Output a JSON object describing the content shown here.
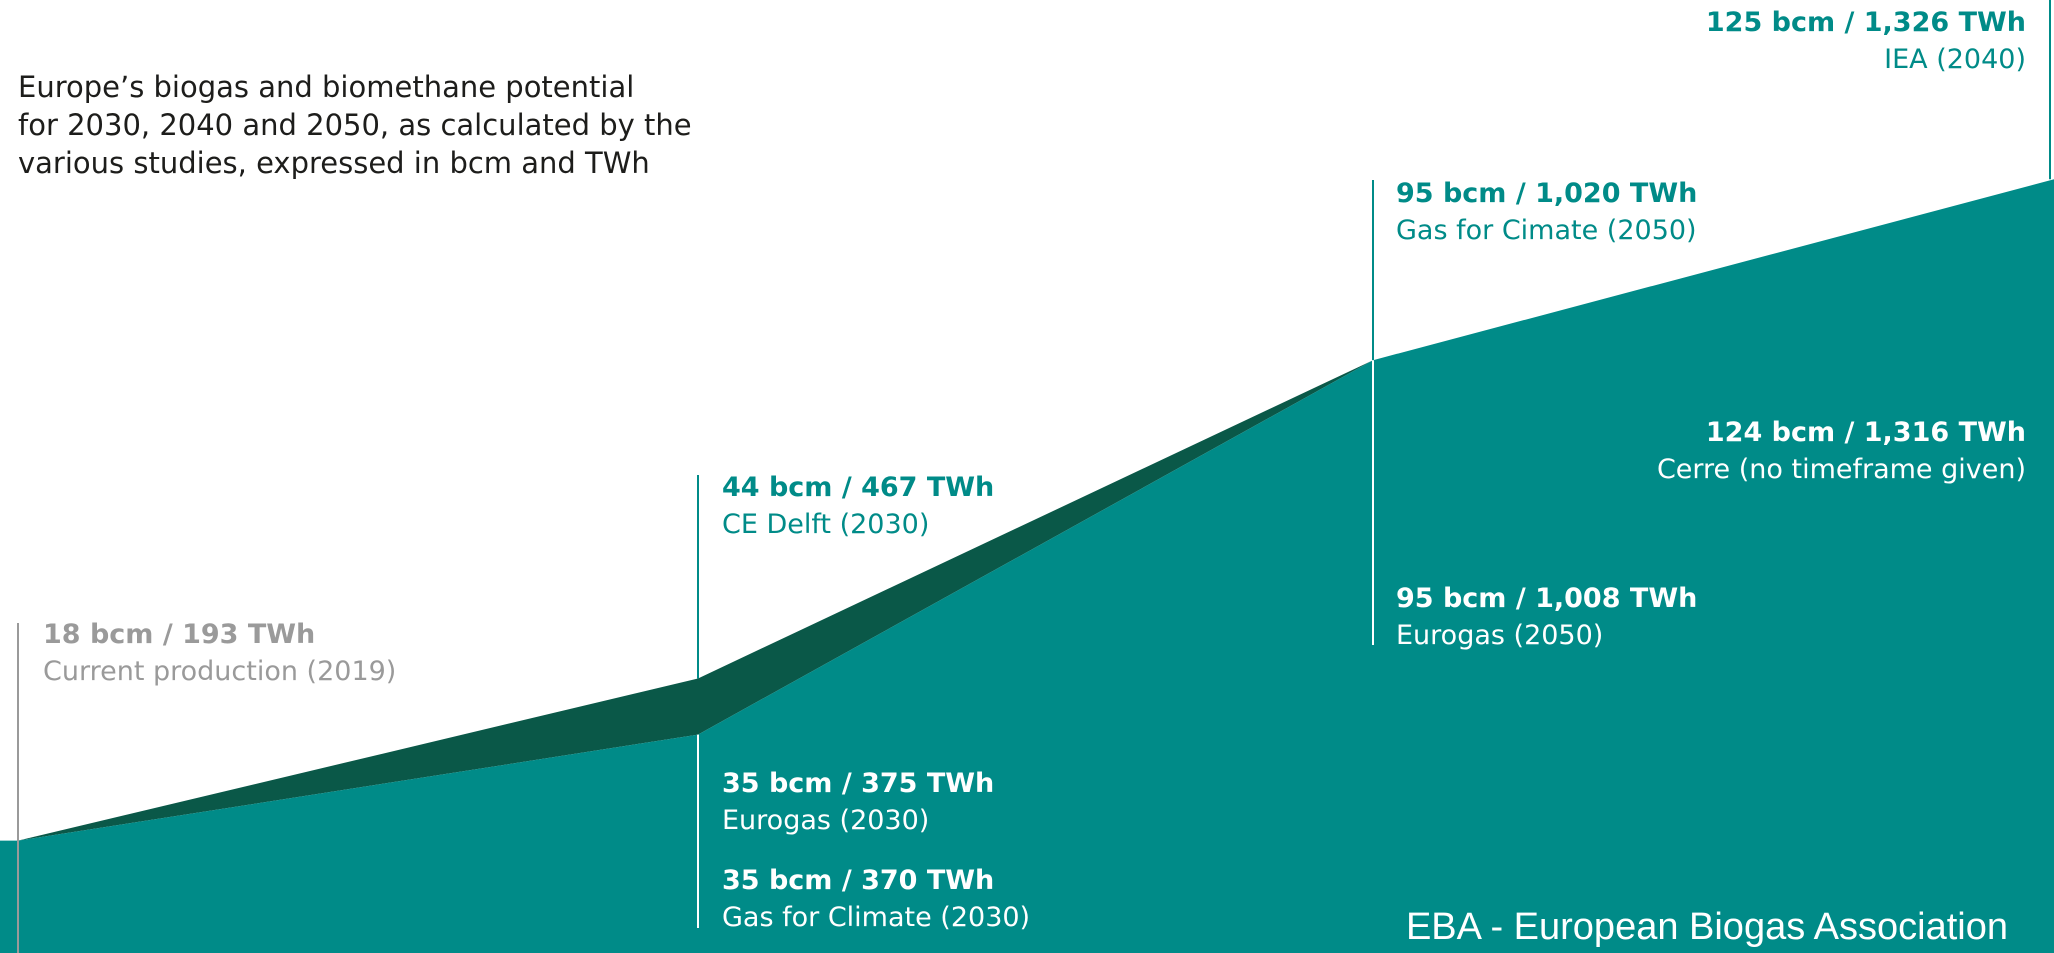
{
  "description": "Europe’s biogas and biomethane potential\nfor 2030, 2040 and 2050, as calculated by the\nvarious studies, expressed in bcm and TWh",
  "source_label": "EBA - European Biogas Association",
  "colors": {
    "teal": "#008b88",
    "dark_green": "#0a5848",
    "grey": "#9a9a9a",
    "text_dark": "#1d1d1b",
    "white": "#ffffff"
  },
  "chart_data": {
    "type": "area",
    "title": "",
    "xlabel": "",
    "ylabel": "",
    "ylim": [
      0,
      130
    ],
    "grid": false,
    "legend": "none",
    "points": [
      {
        "key": "current",
        "value": "18 bcm / 193 TWh",
        "label": "Current production (2019)",
        "bcm": 18,
        "twh": 193
      },
      {
        "key": "cedelft",
        "value": "44 bcm / 467 TWh",
        "label": "CE Delft (2030)",
        "bcm": 44,
        "twh": 467
      },
      {
        "key": "eg2030",
        "value": "35 bcm / 375 TWh",
        "label": "Eurogas (2030)",
        "bcm": 35,
        "twh": 375
      },
      {
        "key": "gfc2030",
        "value": "35 bcm / 370 TWh",
        "label": "Gas for Climate (2030)",
        "bcm": 35,
        "twh": 370
      },
      {
        "key": "gfc2050",
        "value": "95 bcm / 1,020 TWh",
        "label": "Gas for Cimate (2050)",
        "bcm": 95,
        "twh": 1020
      },
      {
        "key": "eg2050",
        "value": "95 bcm / 1,008 TWh",
        "label": "Eurogas (2050)",
        "bcm": 95,
        "twh": 1008
      },
      {
        "key": "iea2040",
        "value": "125 bcm / 1,326 TWh",
        "label": "IEA (2040)",
        "bcm": 125,
        "twh": 1326
      },
      {
        "key": "cerre",
        "value": "124 bcm / 1,316 TWh",
        "label": "Cerre (no timeframe given)",
        "bcm": 124,
        "twh": 1316
      }
    ]
  }
}
